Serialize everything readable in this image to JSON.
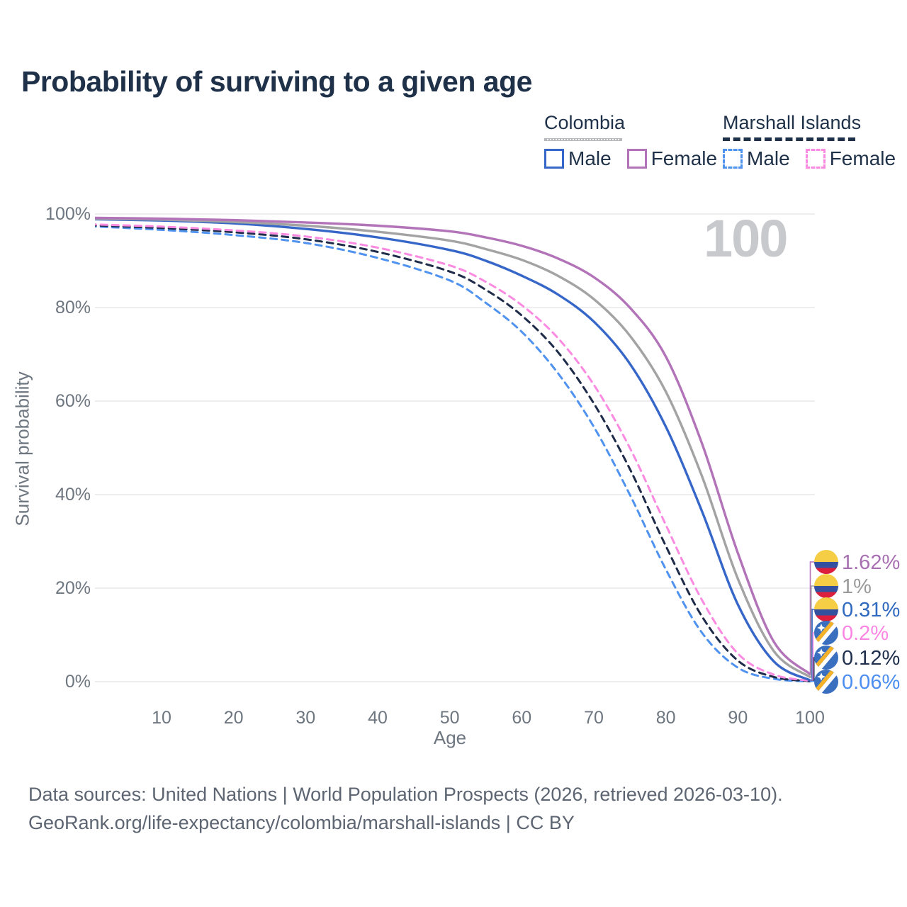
{
  "title": "Probability of surviving to a given age",
  "legend": {
    "groups": [
      {
        "label": "Colombia",
        "style": "solid",
        "items": [
          {
            "label": "Male"
          },
          {
            "label": "Female"
          }
        ]
      },
      {
        "label": "Marshall Islands",
        "style": "dashed",
        "items": [
          {
            "label": "Male"
          },
          {
            "label": "Female"
          }
        ]
      }
    ]
  },
  "axes": {
    "y_label": "Survival probability",
    "x_label": "Age",
    "y_ticks": [
      "0%",
      "20%",
      "40%",
      "60%",
      "80%",
      "100%"
    ],
    "x_ticks": [
      "10",
      "20",
      "30",
      "40",
      "50",
      "60",
      "70",
      "80",
      "90",
      "100"
    ]
  },
  "watermark": "100",
  "footer": {
    "line1": "Data sources: United Nations | World Population Prospects (2026, retrieved 2026-03-10).",
    "line2": "GeoRank.org/life-expectancy/colombia/marshall-islands | CC BY"
  },
  "colors": {
    "title_text": "#1e3148",
    "axis_text": "#6e7680",
    "gridline": "#e9e9ec",
    "watermark": "#c7c9cd",
    "footer_text": "#5c6571"
  },
  "chart_data": {
    "type": "line",
    "title": "Probability of surviving to a given age",
    "xlabel": "Age",
    "ylabel": "Survival probability",
    "xlim": [
      0,
      100
    ],
    "ylim": [
      0,
      100
    ],
    "grid": "horizontal",
    "legend_position": "top-right",
    "x": [
      0,
      10,
      20,
      30,
      40,
      50,
      55,
      60,
      65,
      70,
      75,
      80,
      85,
      90,
      95,
      100
    ],
    "series": [
      {
        "name": "Colombia Female",
        "country": "Colombia",
        "sex": "Female",
        "color": "#b273b8",
        "label_color": "#a86fb2",
        "dash": "solid",
        "end_label": "1.62%",
        "values": [
          99.2,
          99.0,
          98.7,
          98.2,
          97.5,
          96.3,
          95.0,
          93.2,
          90.5,
          86.5,
          80.0,
          69.5,
          51.0,
          27.5,
          8.5,
          1.62
        ]
      },
      {
        "name": "Colombia Both sexes",
        "country": "Colombia",
        "sex": "Both",
        "color": "#a3a3a3",
        "label_color": "#9a9a9a",
        "dash": "solid",
        "end_label": "1%",
        "values": [
          99.0,
          98.8,
          98.3,
          97.5,
          96.2,
          94.3,
          92.5,
          90.2,
          86.8,
          81.8,
          74.0,
          62.0,
          44.0,
          22.0,
          6.5,
          1.0
        ]
      },
      {
        "name": "Colombia Male",
        "country": "Colombia",
        "sex": "Male",
        "color": "#3667c8",
        "label_color": "#2f6ac0",
        "dash": "solid",
        "end_label": "0.31%",
        "values": [
          98.9,
          98.6,
          98.0,
          96.8,
          95.0,
          92.3,
          90.0,
          86.8,
          82.8,
          77.0,
          68.0,
          54.5,
          36.5,
          16.5,
          4.3,
          0.31
        ]
      },
      {
        "name": "Marshall Islands Female",
        "country": "Marshall Islands",
        "sex": "Female",
        "color": "#fb8ae1",
        "label_color": "#fb86e3",
        "dash": "dashed",
        "end_label": "0.2%",
        "values": [
          97.8,
          97.3,
          96.5,
          95.2,
          92.8,
          89.0,
          85.5,
          80.5,
          73.5,
          63.5,
          50.0,
          33.5,
          17.5,
          6.0,
          1.5,
          0.2
        ]
      },
      {
        "name": "Marshall Islands Both sexes",
        "country": "Marshall Islands",
        "sex": "Both",
        "color": "#1e2c49",
        "label_color": "#20304d",
        "dash": "dashed",
        "end_label": "0.12%",
        "values": [
          97.6,
          97.0,
          96.1,
          94.6,
          91.9,
          87.7,
          83.8,
          78.3,
          70.5,
          59.5,
          45.5,
          29.0,
          14.0,
          4.5,
          1.0,
          0.12
        ]
      },
      {
        "name": "Marshall Islands Male",
        "country": "Marshall Islands",
        "sex": "Male",
        "color": "#4f92ef",
        "label_color": "#4b8ef0",
        "dash": "dashed",
        "end_label": "0.06%",
        "values": [
          97.4,
          96.6,
          95.5,
          93.8,
          90.6,
          85.8,
          81.0,
          74.8,
          66.0,
          54.5,
          40.0,
          24.0,
          10.5,
          3.0,
          0.6,
          0.06
        ]
      }
    ],
    "flag_colors": {
      "colombia": {
        "yellow": "#f5ce45",
        "blue": "#33519e",
        "red": "#dc1f3d"
      },
      "marshall_islands": {
        "blue": "#3a6fc0",
        "orange": "#f3b229",
        "white": "#ffffff"
      }
    }
  }
}
